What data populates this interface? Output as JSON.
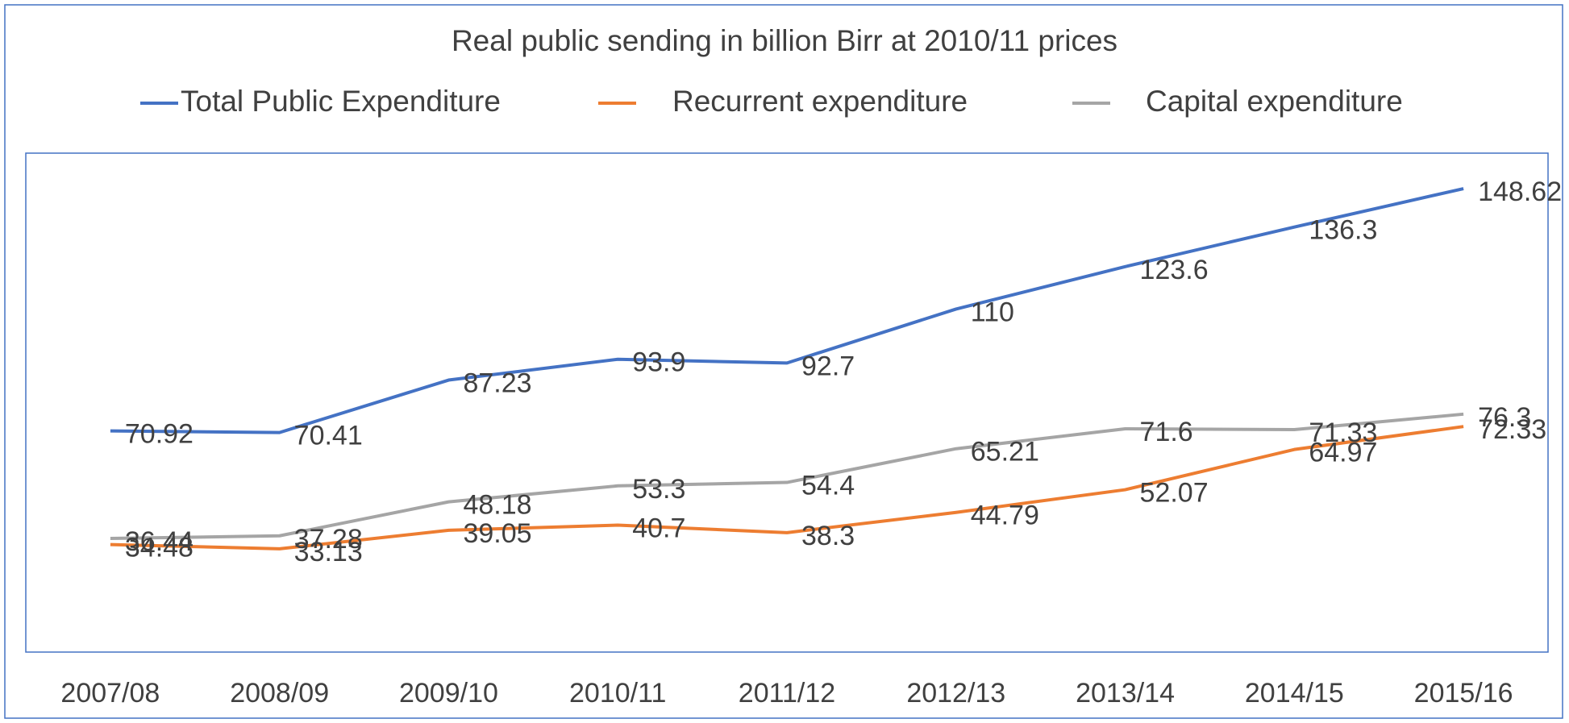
{
  "chart_data": {
    "type": "line",
    "title": "Real public sending in billion Birr at 2010/11 prices",
    "categories": [
      "2007/08",
      "2008/09",
      "2009/10",
      "2010/11",
      "2011/12",
      "2012/13",
      "2013/14",
      "2014/15",
      "2015/16"
    ],
    "series": [
      {
        "name": "Total Public Expenditure",
        "color": "#4472c4",
        "values": [
          70.92,
          70.41,
          87.23,
          93.9,
          92.7,
          110,
          123.6,
          136.3,
          148.62
        ]
      },
      {
        "name": "Recurrent expenditure",
        "color": "#ed7d31",
        "values": [
          34.48,
          33.13,
          39.05,
          40.7,
          38.3,
          44.79,
          52.07,
          64.97,
          72.33
        ]
      },
      {
        "name": "Capital expenditure",
        "color": "#a5a5a5",
        "values": [
          36.44,
          37.28,
          48.18,
          53.3,
          54.4,
          65.21,
          71.6,
          71.33,
          76.3
        ]
      }
    ],
    "ylim": [
      0,
      160
    ]
  }
}
